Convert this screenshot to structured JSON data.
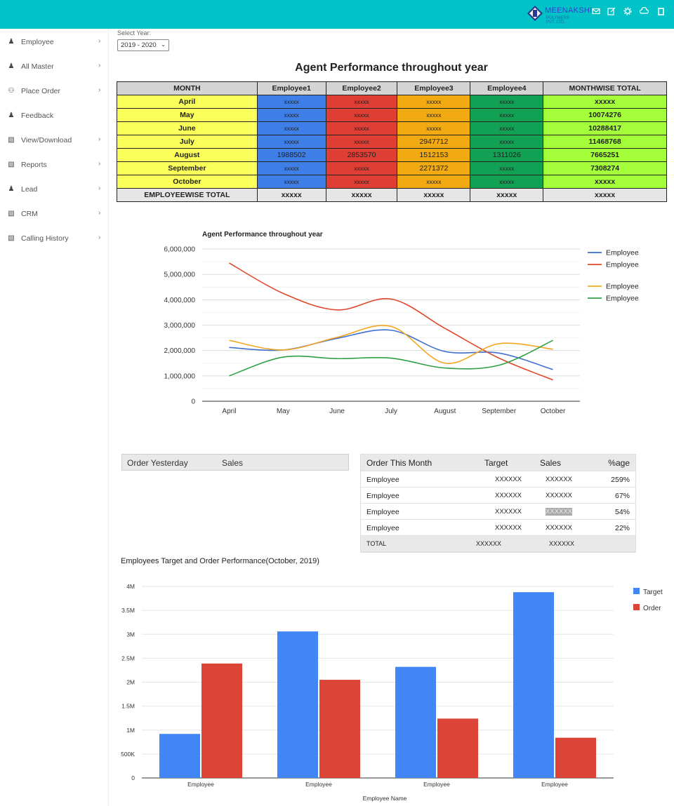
{
  "header": {
    "logo_name": "MEENAKSHI",
    "logo_sub": "POLYMERS PVT. LTD.",
    "icons": [
      "mail-icon",
      "edit-icon",
      "gear-icon",
      "cloud-icon",
      "user-icon"
    ]
  },
  "sidebar": {
    "items": [
      {
        "label": "Employee",
        "icon": "person-icon",
        "chevron": true
      },
      {
        "label": "All Master",
        "icon": "person-icon",
        "chevron": true
      },
      {
        "label": "Place Order",
        "icon": "people-icon",
        "chevron": true
      },
      {
        "label": "Feedback",
        "icon": "person-icon",
        "chevron": false
      },
      {
        "label": "View/Download",
        "icon": "bars-icon",
        "chevron": true
      },
      {
        "label": "Reports",
        "icon": "bars-icon",
        "chevron": true
      },
      {
        "label": "Lead",
        "icon": "person-icon",
        "chevron": true
      },
      {
        "label": "CRM",
        "icon": "bars-icon",
        "chevron": true
      },
      {
        "label": "Calling History",
        "icon": "bars-icon",
        "chevron": true
      }
    ]
  },
  "year": {
    "label": "Select Year:",
    "value": "2019 - 2020"
  },
  "perf": {
    "title": "Agent Performance throughout year",
    "headers": [
      "MONTH",
      "Employee1",
      "Employee2",
      "Employee3",
      "Employee4",
      "MONTHWISE TOTAL"
    ],
    "rows": [
      {
        "month": "April",
        "e1": "xxxxx",
        "e2": "xxxxx",
        "e3": "xxxxx",
        "e4": "xxxxx",
        "total": "xxxxx"
      },
      {
        "month": "May",
        "e1": "xxxxx",
        "e2": "xxxxx",
        "e3": "xxxxx",
        "e4": "xxxxx",
        "total": "10074276"
      },
      {
        "month": "June",
        "e1": "xxxxx",
        "e2": "xxxxx",
        "e3": "xxxxx",
        "e4": "xxxxx",
        "total": "10288417"
      },
      {
        "month": "July",
        "e1": "xxxxx",
        "e2": "xxxxx",
        "e3": "2947712",
        "e4": "xxxxx",
        "total": "11468768"
      },
      {
        "month": "August",
        "e1": "1988502",
        "e2": "2853570",
        "e3": "1512153",
        "e4": "1311026",
        "total": "7665251"
      },
      {
        "month": "September",
        "e1": "xxxxx",
        "e2": "xxxxx",
        "e3": "2271372",
        "e4": "xxxxx",
        "total": "7308274"
      },
      {
        "month": "October",
        "e1": "xxxxx",
        "e2": "xxxxx",
        "e3": "xxxxx",
        "e4": "xxxxx",
        "total": "xxxxx"
      }
    ],
    "total_row": {
      "month": "EMPLOYEEWISE TOTAL",
      "e1": "xxxxx",
      "e2": "xxxxx",
      "e3": "xxxxx",
      "e4": "xxxxx",
      "total": "xxxxx"
    }
  },
  "order_yesterday": {
    "col1": "Order Yesterday",
    "col2": "Sales"
  },
  "order_month": {
    "headers": [
      "Order This Month",
      "Target",
      "Sales",
      "%age"
    ],
    "rows": [
      {
        "name": "Employee",
        "target": "XXXXXX",
        "sales": "XXXXXX",
        "pct": "259%",
        "highlight": false
      },
      {
        "name": "Employee",
        "target": "XXXXXX",
        "sales": "XXXXXX",
        "pct": "67%",
        "highlight": false
      },
      {
        "name": "Employee",
        "target": "XXXXXX",
        "sales": "XXXXXX",
        "pct": "54%",
        "highlight": true
      },
      {
        "name": "Employee",
        "target": "XXXXXX",
        "sales": "XXXXXX",
        "pct": "22%",
        "highlight": false
      }
    ],
    "total": {
      "name": "TOTAL",
      "target": "XXXXXX",
      "sales": "XXXXXX"
    }
  },
  "chart_data": [
    {
      "type": "line",
      "title": "Agent Performance throughout year",
      "categories": [
        "April",
        "May",
        "June",
        "July",
        "August",
        "September",
        "October"
      ],
      "ylim": [
        0,
        6000000
      ],
      "yticks": [
        "0",
        "1,000,000",
        "2,000,000",
        "3,000,000",
        "4,000,000",
        "5,000,000",
        "6,000,000"
      ],
      "grid": true,
      "legend": "right",
      "series": [
        {
          "name": "Employee",
          "color": "#3f6fd1",
          "values": [
            2120000,
            2020000,
            2480000,
            2800000,
            1960000,
            1900000,
            1250000
          ]
        },
        {
          "name": "Employee",
          "color": "#e0482b",
          "values": [
            5450000,
            4250000,
            3600000,
            4030000,
            2870000,
            1700000,
            840000
          ]
        },
        {
          "name": "Employee",
          "color": "#f5a623",
          "values": [
            2400000,
            2020000,
            2520000,
            2950000,
            1500000,
            2270000,
            2050000
          ]
        },
        {
          "name": "Employee",
          "color": "#2ea043",
          "values": [
            1000000,
            1740000,
            1680000,
            1700000,
            1310000,
            1420000,
            2400000
          ]
        }
      ]
    },
    {
      "type": "bar",
      "title": "Employees Target and Order Performance(October, 2019)",
      "xlabel": "Employee Name",
      "categories": [
        "Employee",
        "Employee",
        "Employee",
        "Employee"
      ],
      "ylim": [
        0,
        4000000
      ],
      "yticks": [
        "0",
        "500K",
        "1M",
        "1.5M",
        "2M",
        "2.5M",
        "3M",
        "3.5M",
        "4M"
      ],
      "legend": "top-right",
      "series": [
        {
          "name": "Target",
          "color": "#4285f4",
          "values": [
            920000,
            3060000,
            2320000,
            3880000
          ]
        },
        {
          "name": "Order",
          "color": "#db4437",
          "values": [
            2390000,
            2050000,
            1240000,
            840000
          ]
        }
      ]
    }
  ]
}
